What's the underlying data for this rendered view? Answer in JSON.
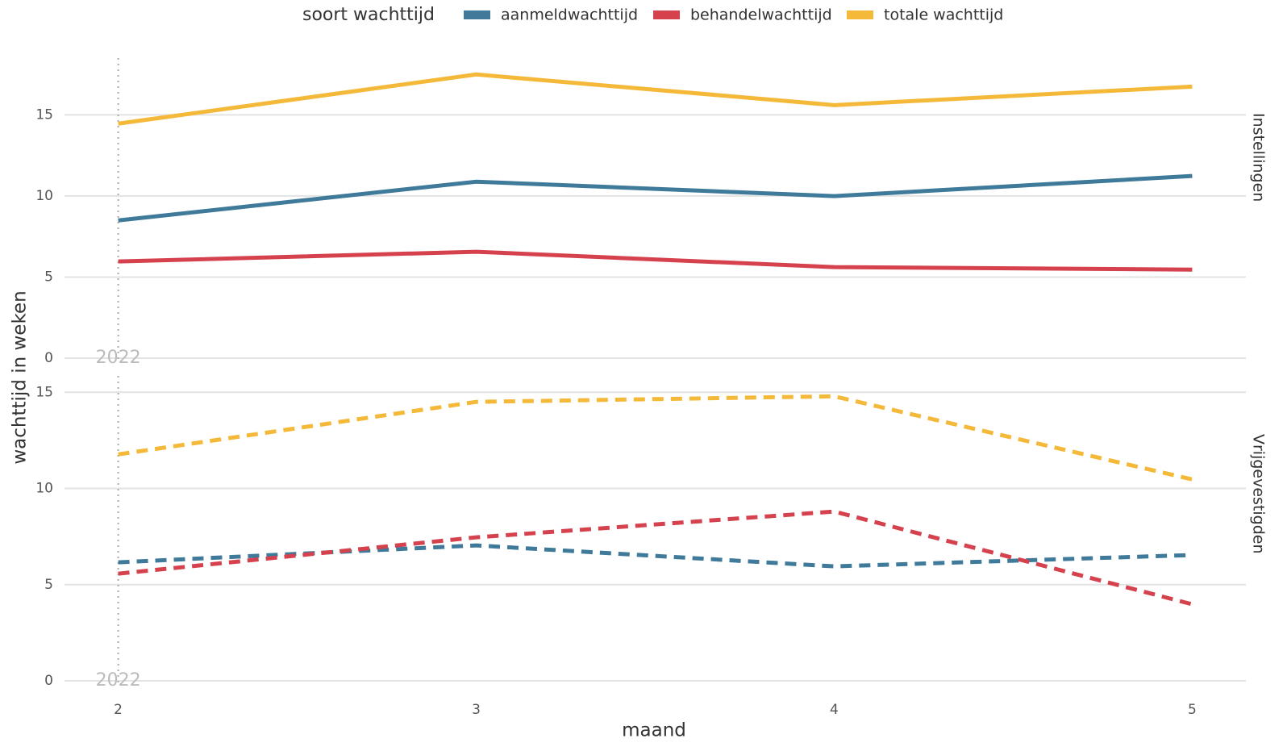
{
  "chart_data": [
    {
      "type": "line",
      "facet": "Instellingen",
      "legend_title": "soort wachttijd",
      "y_label": "wachttijd in weken",
      "line_style": "solid",
      "x": [
        2,
        3,
        4,
        5
      ],
      "xlim": [
        1.85,
        5.15
      ],
      "ylim": [
        -0.2,
        18.5
      ],
      "yticks": [
        0,
        5,
        10,
        15
      ],
      "grid": true,
      "annotation": {
        "x": 2,
        "text": "2022"
      },
      "series": [
        {
          "name": "aanmeldwachttijd",
          "color": "#3f7a9a",
          "values": [
            8.49,
            10.88,
            9.99,
            11.23
          ]
        },
        {
          "name": "behandelwachttijd",
          "color": "#d5424e",
          "values": [
            5.96,
            6.56,
            5.61,
            5.46
          ]
        },
        {
          "name": "totale wachttijd",
          "color": "#f5b93a",
          "values": [
            14.46,
            17.49,
            15.6,
            16.74
          ]
        }
      ]
    },
    {
      "type": "line",
      "facet": "Vrijgevestigden",
      "x_label": "maand",
      "xticks": [
        2,
        3,
        4,
        5
      ],
      "line_style": "dashed",
      "x": [
        2,
        3,
        4,
        5
      ],
      "xlim": [
        1.85,
        5.15
      ],
      "ylim": [
        -0.25,
        15.85
      ],
      "yticks": [
        0,
        5,
        10,
        15
      ],
      "grid": true,
      "annotation": {
        "x": 2,
        "text": "2022"
      },
      "series": [
        {
          "name": "aanmeldwachttijd",
          "color": "#3f7a9a",
          "values": [
            6.16,
            7.04,
            5.95,
            6.54
          ]
        },
        {
          "name": "behandelwachttijd",
          "color": "#d5424e",
          "values": [
            5.57,
            7.46,
            8.8,
            3.98
          ]
        },
        {
          "name": "totale wachttijd",
          "color": "#f5b93a",
          "values": [
            11.77,
            14.5,
            14.79,
            10.47
          ]
        }
      ]
    }
  ]
}
